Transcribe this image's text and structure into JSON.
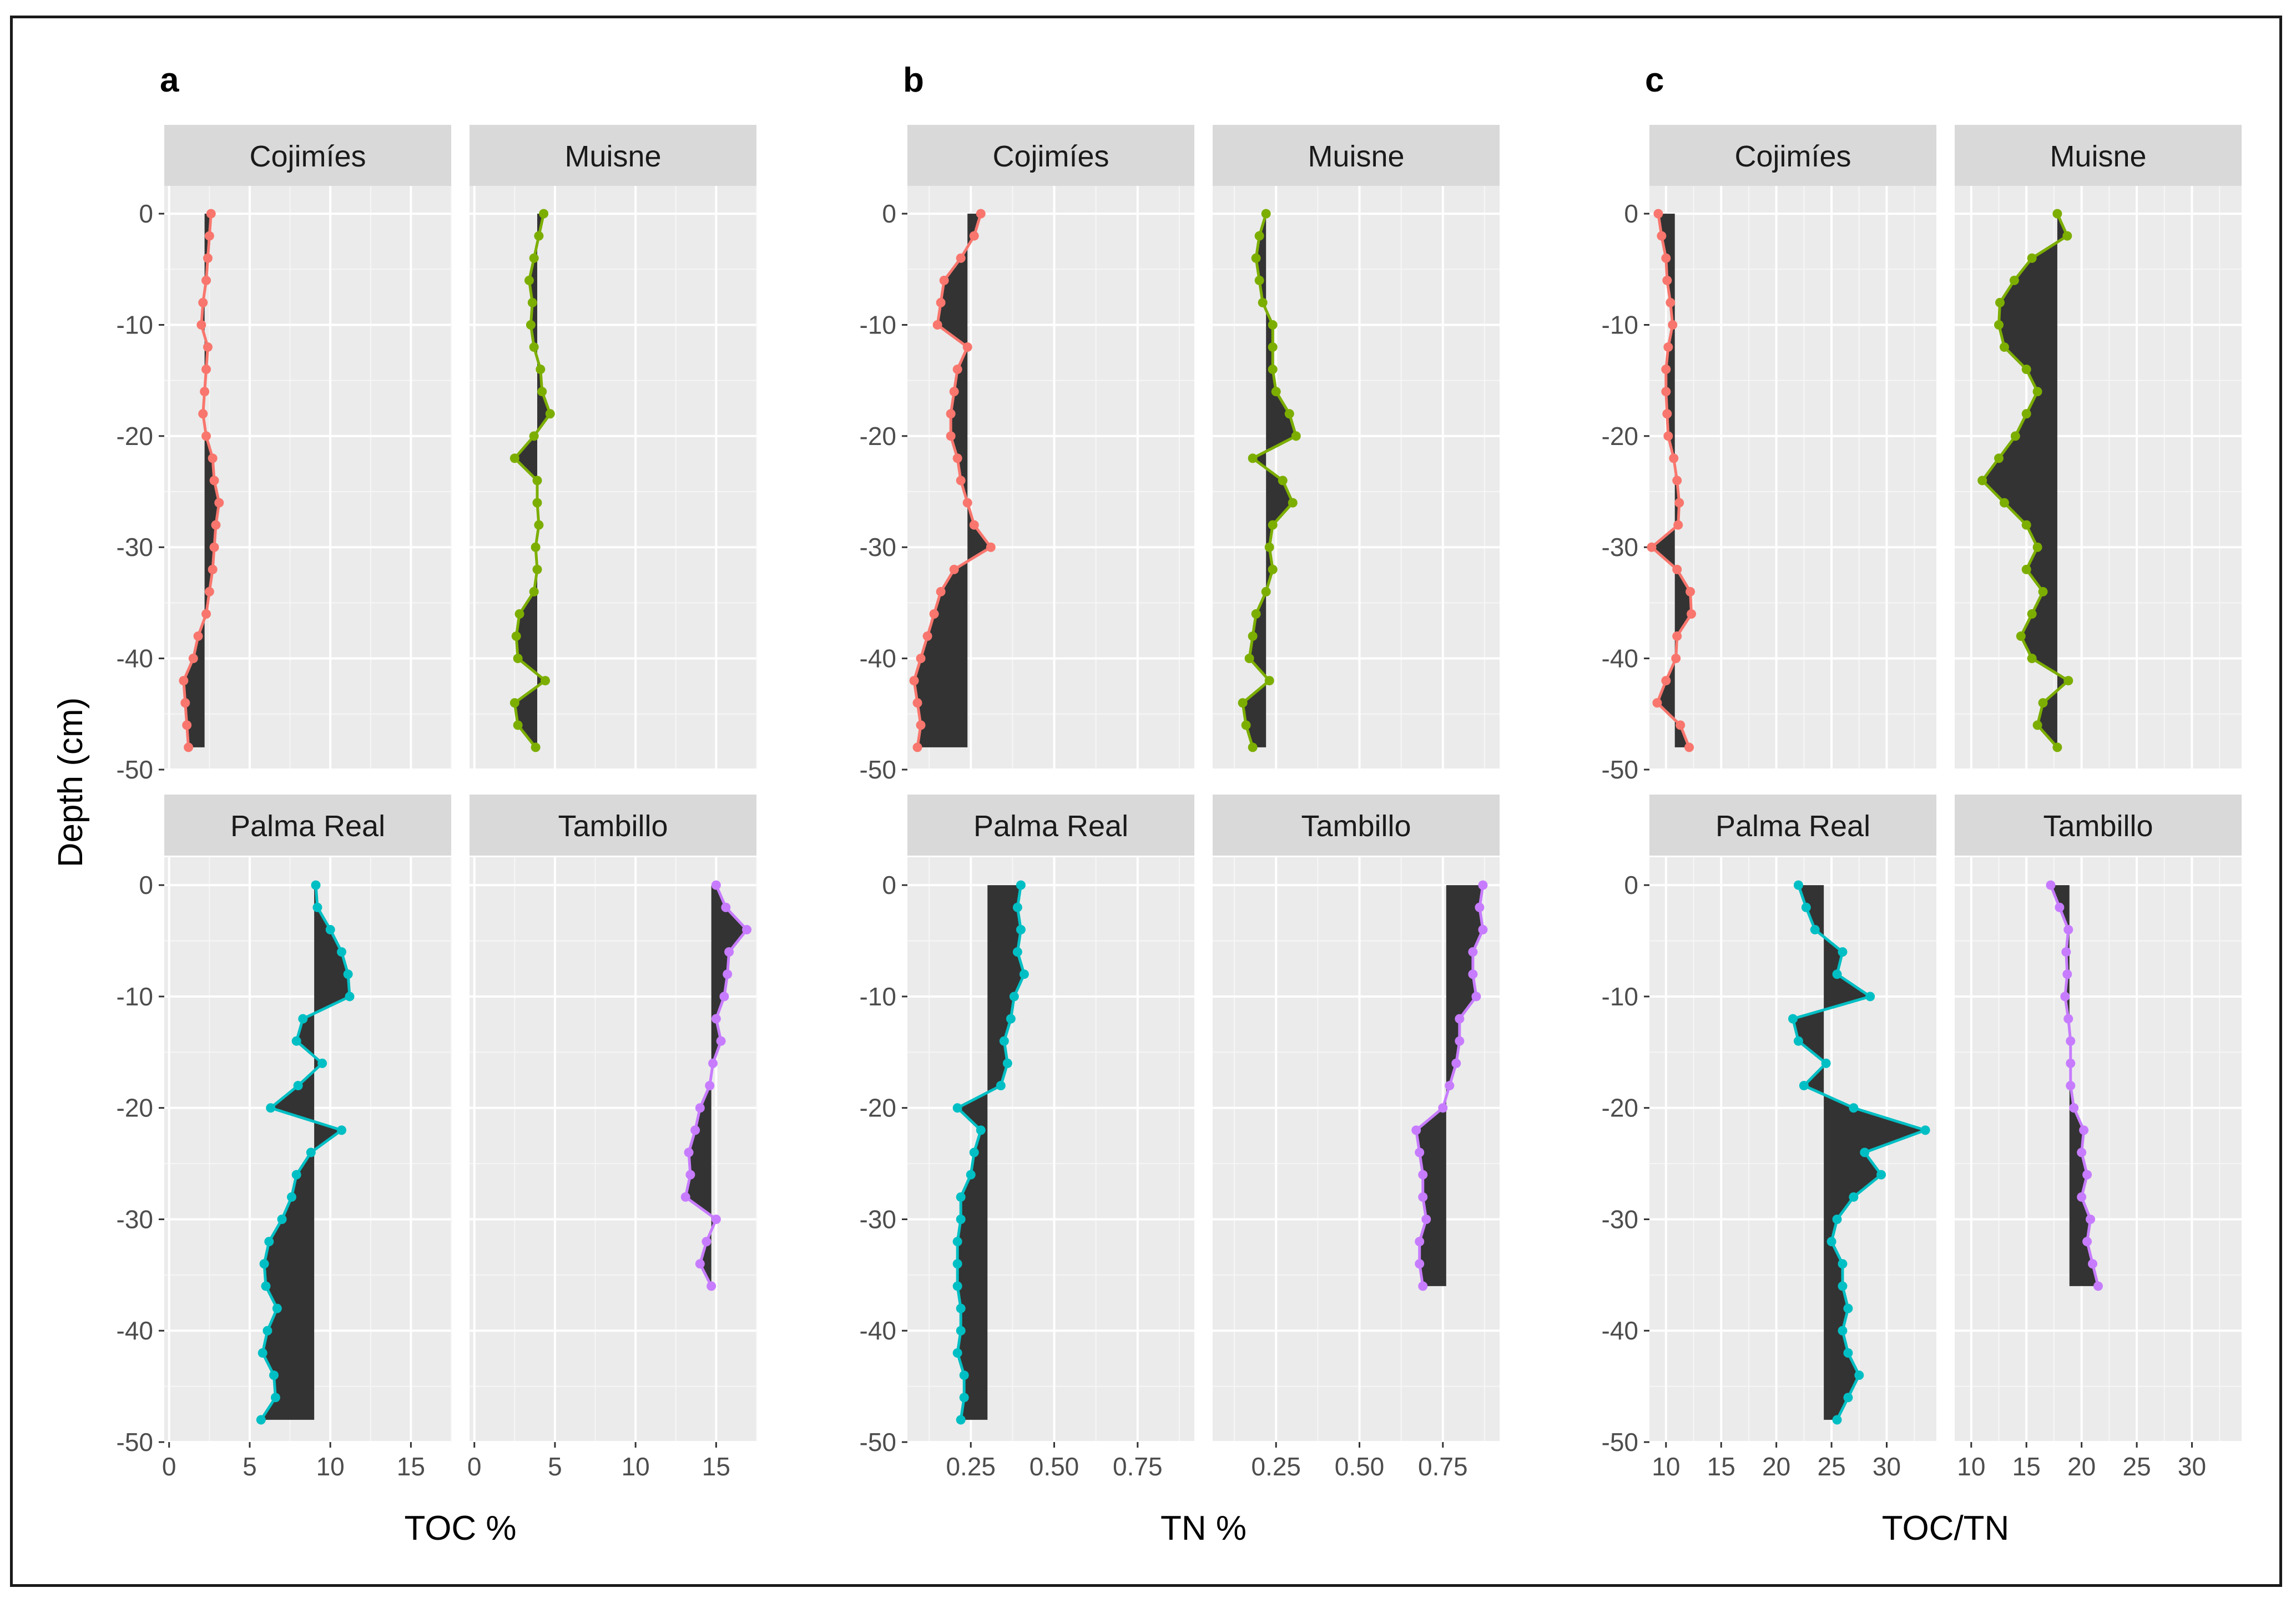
{
  "chart_data": {
    "type": "line",
    "description_style": "faceted depth profiles; filled area between each profile and its mean",
    "y_axis": {
      "label": "Depth (cm)",
      "ylim": [
        -50,
        2.5
      ],
      "ticks": [
        0,
        -10,
        -20,
        -30,
        -40,
        -50
      ]
    },
    "facet_labels_top": [
      "Cojimíes",
      "Muisne"
    ],
    "facet_labels_bottom": [
      "Palma Real",
      "Tambillo"
    ],
    "site_colors": {
      "Cojimíes": "#F8766D",
      "Muisne": "#7CAE00",
      "Palma Real": "#00BFC4",
      "Tambillo": "#C77CFF"
    },
    "panels": [
      {
        "letter": "a",
        "xlabel": "TOC %",
        "xlim": [
          -0.3,
          17.5
        ],
        "xticks": [
          0,
          5,
          10,
          15
        ],
        "xtick_labels": [
          "0",
          "5",
          "10",
          "15"
        ],
        "sites": [
          {
            "name": "Cojimíes",
            "mean": 2.2,
            "depth": [
              0,
              -2,
              -4,
              -6,
              -8,
              -10,
              -12,
              -14,
              -16,
              -18,
              -20,
              -22,
              -24,
              -26,
              -28,
              -30,
              -32,
              -34,
              -36,
              -38,
              -40,
              -42,
              -44,
              -46,
              -48
            ],
            "values": [
              2.6,
              2.5,
              2.4,
              2.3,
              2.1,
              2.0,
              2.4,
              2.3,
              2.2,
              2.1,
              2.3,
              2.7,
              2.8,
              3.1,
              2.9,
              2.8,
              2.7,
              2.5,
              2.3,
              1.8,
              1.5,
              0.9,
              1.0,
              1.1,
              1.2
            ]
          },
          {
            "name": "Muisne",
            "mean": 3.9,
            "depth": [
              0,
              -2,
              -4,
              -6,
              -8,
              -10,
              -12,
              -14,
              -16,
              -18,
              -20,
              -22,
              -24,
              -26,
              -28,
              -30,
              -32,
              -34,
              -36,
              -38,
              -40,
              -42,
              -44,
              -46,
              -48
            ],
            "values": [
              4.3,
              4.0,
              3.7,
              3.4,
              3.6,
              3.5,
              3.7,
              4.1,
              4.2,
              4.7,
              3.7,
              2.5,
              3.9,
              3.9,
              4.0,
              3.8,
              3.9,
              3.7,
              2.8,
              2.6,
              2.7,
              4.4,
              2.5,
              2.7,
              3.8
            ]
          },
          {
            "name": "Palma Real",
            "mean": 9.0,
            "depth": [
              0,
              -2,
              -4,
              -6,
              -8,
              -10,
              -12,
              -14,
              -16,
              -18,
              -20,
              -22,
              -24,
              -26,
              -28,
              -30,
              -32,
              -34,
              -36,
              -38,
              -40,
              -42,
              -44,
              -46,
              -48
            ],
            "values": [
              9.1,
              9.2,
              10.0,
              10.7,
              11.1,
              11.2,
              8.3,
              7.9,
              9.5,
              8.0,
              6.3,
              10.7,
              8.8,
              7.9,
              7.6,
              7.0,
              6.2,
              5.9,
              6.0,
              6.7,
              6.1,
              5.8,
              6.5,
              6.6,
              5.7
            ]
          },
          {
            "name": "Tambillo",
            "mean": 14.7,
            "depth": [
              0,
              -2,
              -4,
              -6,
              -8,
              -10,
              -12,
              -14,
              -16,
              -18,
              -20,
              -22,
              -24,
              -26,
              -28,
              -30,
              -32,
              -34,
              -36
            ],
            "values": [
              15.0,
              15.6,
              16.9,
              15.8,
              15.7,
              15.5,
              15.0,
              15.3,
              14.8,
              14.6,
              14.0,
              13.7,
              13.3,
              13.4,
              13.1,
              15.0,
              14.4,
              14.0,
              14.7
            ]
          }
        ]
      },
      {
        "letter": "b",
        "xlabel": "TN %",
        "xlim": [
          0.06,
          0.92
        ],
        "xticks": [
          0.25,
          0.5,
          0.75
        ],
        "xtick_labels": [
          "0.25",
          "0.50",
          "0.75"
        ],
        "sites": [
          {
            "name": "Cojimíes",
            "mean": 0.24,
            "depth": [
              0,
              -2,
              -4,
              -6,
              -8,
              -10,
              -12,
              -14,
              -16,
              -18,
              -20,
              -22,
              -24,
              -26,
              -28,
              -30,
              -32,
              -34,
              -36,
              -38,
              -40,
              -42,
              -44,
              -46,
              -48
            ],
            "values": [
              0.28,
              0.26,
              0.22,
              0.17,
              0.16,
              0.15,
              0.24,
              0.21,
              0.2,
              0.19,
              0.19,
              0.21,
              0.22,
              0.24,
              0.26,
              0.31,
              0.2,
              0.16,
              0.14,
              0.12,
              0.1,
              0.08,
              0.09,
              0.1,
              0.09
            ]
          },
          {
            "name": "Muisne",
            "mean": 0.22,
            "depth": [
              0,
              -2,
              -4,
              -6,
              -8,
              -10,
              -12,
              -14,
              -16,
              -18,
              -20,
              -22,
              -24,
              -26,
              -28,
              -30,
              -32,
              -34,
              -36,
              -38,
              -40,
              -42,
              -44,
              -46,
              -48
            ],
            "values": [
              0.22,
              0.2,
              0.19,
              0.2,
              0.21,
              0.24,
              0.24,
              0.24,
              0.25,
              0.29,
              0.31,
              0.18,
              0.27,
              0.3,
              0.24,
              0.23,
              0.24,
              0.22,
              0.19,
              0.18,
              0.17,
              0.23,
              0.15,
              0.16,
              0.18
            ]
          },
          {
            "name": "Palma Real",
            "mean": 0.3,
            "depth": [
              0,
              -2,
              -4,
              -6,
              -8,
              -10,
              -12,
              -14,
              -16,
              -18,
              -20,
              -22,
              -24,
              -26,
              -28,
              -30,
              -32,
              -34,
              -36,
              -38,
              -40,
              -42,
              -44,
              -46,
              -48
            ],
            "values": [
              0.4,
              0.39,
              0.4,
              0.39,
              0.41,
              0.38,
              0.37,
              0.35,
              0.36,
              0.34,
              0.21,
              0.28,
              0.26,
              0.25,
              0.22,
              0.22,
              0.21,
              0.21,
              0.21,
              0.22,
              0.22,
              0.21,
              0.23,
              0.23,
              0.22
            ]
          },
          {
            "name": "Tambillo",
            "mean": 0.76,
            "depth": [
              0,
              -2,
              -4,
              -6,
              -8,
              -10,
              -12,
              -14,
              -16,
              -18,
              -20,
              -22,
              -24,
              -26,
              -28,
              -30,
              -32,
              -34,
              -36
            ],
            "values": [
              0.87,
              0.86,
              0.87,
              0.84,
              0.84,
              0.85,
              0.8,
              0.8,
              0.79,
              0.77,
              0.75,
              0.67,
              0.68,
              0.69,
              0.69,
              0.7,
              0.68,
              0.68,
              0.69
            ]
          }
        ]
      },
      {
        "letter": "c",
        "xlabel": "TOC/TN",
        "xlim": [
          8.5,
          34.5
        ],
        "xticks": [
          10,
          15,
          20,
          25,
          30
        ],
        "xtick_labels": [
          "10",
          "15",
          "20",
          "25",
          "30"
        ],
        "sites": [
          {
            "name": "Cojimíes",
            "mean": 10.8,
            "depth": [
              0,
              -2,
              -4,
              -6,
              -8,
              -10,
              -12,
              -14,
              -16,
              -18,
              -20,
              -22,
              -24,
              -26,
              -28,
              -30,
              -32,
              -34,
              -36,
              -38,
              -40,
              -42,
              -44,
              -46,
              -48
            ],
            "values": [
              9.3,
              9.6,
              10.0,
              10.1,
              10.4,
              10.6,
              10.2,
              10.0,
              10.0,
              10.1,
              10.2,
              10.7,
              11.0,
              11.2,
              11.1,
              8.7,
              11.0,
              12.2,
              12.3,
              11.0,
              10.9,
              10.0,
              9.2,
              11.3,
              12.1
            ]
          },
          {
            "name": "Muisne",
            "mean": 17.8,
            "depth": [
              0,
              -2,
              -4,
              -6,
              -8,
              -10,
              -12,
              -14,
              -16,
              -18,
              -20,
              -22,
              -24,
              -26,
              -28,
              -30,
              -32,
              -34,
              -36,
              -38,
              -40,
              -42,
              -44,
              -46,
              -48
            ],
            "values": [
              17.8,
              18.7,
              15.5,
              13.9,
              12.6,
              12.5,
              13.0,
              15.0,
              16.0,
              15.0,
              14.0,
              12.5,
              11.0,
              13.0,
              15.0,
              16.0,
              15.0,
              16.5,
              15.5,
              14.5,
              15.5,
              18.8,
              16.5,
              16.0,
              17.8
            ]
          },
          {
            "name": "Palma Real",
            "mean": 24.3,
            "depth": [
              0,
              -2,
              -4,
              -6,
              -8,
              -10,
              -12,
              -14,
              -16,
              -18,
              -20,
              -22,
              -24,
              -26,
              -28,
              -30,
              -32,
              -34,
              -36,
              -38,
              -40,
              -42,
              -44,
              -46,
              -48
            ],
            "values": [
              22.0,
              22.7,
              23.5,
              26.0,
              25.5,
              28.5,
              21.5,
              22.0,
              24.5,
              22.5,
              27.0,
              33.5,
              28.0,
              29.5,
              27.0,
              25.5,
              25.0,
              26.0,
              26.0,
              26.5,
              26.0,
              26.5,
              27.5,
              26.5,
              25.5
            ]
          },
          {
            "name": "Tambillo",
            "mean": 18.9,
            "depth": [
              0,
              -2,
              -4,
              -6,
              -8,
              -10,
              -12,
              -14,
              -16,
              -18,
              -20,
              -22,
              -24,
              -26,
              -28,
              -30,
              -32,
              -34,
              -36
            ],
            "values": [
              17.2,
              18.0,
              18.8,
              18.6,
              18.7,
              18.5,
              18.8,
              19.0,
              19.0,
              19.0,
              19.3,
              20.2,
              20.0,
              20.5,
              20.0,
              20.8,
              20.5,
              21.0,
              21.5
            ]
          }
        ]
      }
    ]
  }
}
